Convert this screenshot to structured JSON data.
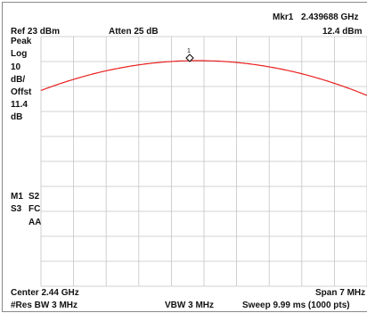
{
  "header": {
    "marker_readout_label": "Mkr1",
    "marker_freq": "2.439688 GHz",
    "ref_level": "Ref 23 dBm",
    "attenuation": "Atten 25 dB",
    "marker_level": "12.4 dBm"
  },
  "left_panel": {
    "detector": "Peak",
    "scale_type": "Log",
    "scale_value": "10",
    "scale_unit": "dB/",
    "offset_label": "Offst",
    "offset_value": "11.4",
    "offset_unit": "dB",
    "m1": "M1",
    "s2": "S2",
    "s3": "S3",
    "fc": "FC",
    "aa": "AA"
  },
  "footer": {
    "center": "Center 2.44 GHz",
    "span": "Span 7 MHz",
    "res_bw": "#Res BW 3 MHz",
    "vbw": "VBW 3 MHz",
    "sweep": "Sweep 9.99 ms (1000 pts)"
  },
  "marker": {
    "label": "1"
  },
  "colors": {
    "trace": "#e8211f",
    "grid": "#c4c4c4",
    "text": "#111111"
  }
}
